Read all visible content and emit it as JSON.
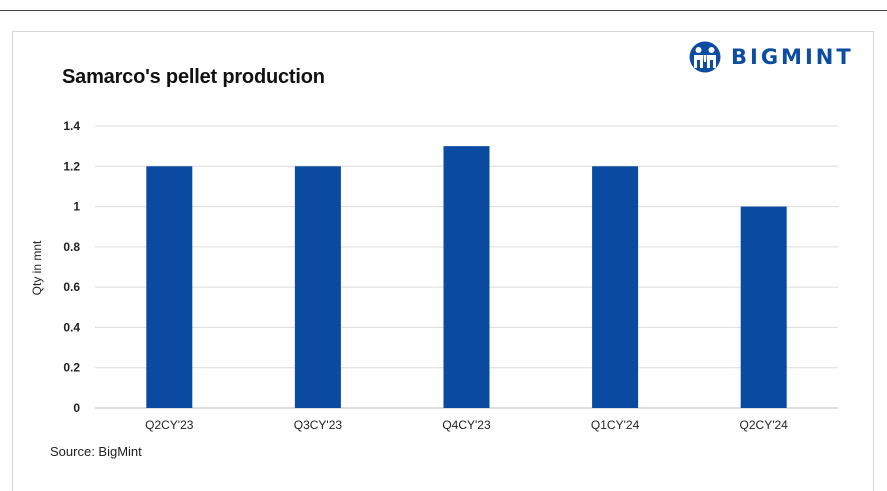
{
  "brand": {
    "name": "BIGMINT",
    "color": "#0c4da2",
    "icon": "bigmint-logo-icon"
  },
  "source": "Source: BigMint",
  "chart_data": {
    "type": "bar",
    "title": "Samarco's pellet production",
    "xlabel": "",
    "ylabel": "Qty in mnt",
    "categories": [
      "Q2CY'23",
      "Q3CY'23",
      "Q4CY'23",
      "Q1CY'24",
      "Q2CY'24"
    ],
    "series": [
      {
        "values": [
          1.2,
          1.2,
          1.3,
          1.2,
          1.0
        ],
        "color": "#0a4aa0"
      }
    ],
    "ylim": [
      0,
      1.4
    ],
    "yticks": [
      0,
      0.2,
      0.4,
      0.6,
      0.8,
      1,
      1.2,
      1.4
    ],
    "ytick_labels": [
      "0",
      "0.2",
      "0.4",
      "0.6",
      "0.8",
      "1",
      "1.2",
      "1.4"
    ],
    "grid": true,
    "legend": "none"
  }
}
